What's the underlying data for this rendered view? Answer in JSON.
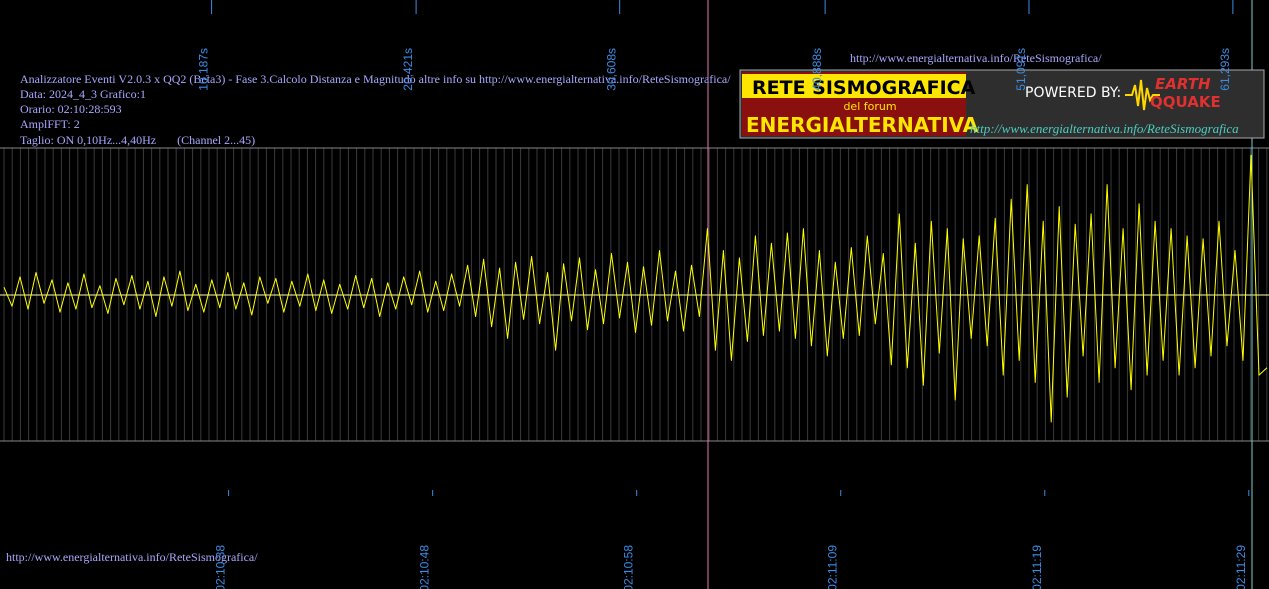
{
  "chart_data": {
    "type": "line",
    "info_lines": [
      "Analizzatore Eventi V2.0.3 x QQ2 (Beta3) - Fase 3.Calcolo Distanza e Magnitudo altre info su http://www.energialternativa.info/ReteSismografica/",
      "Data: 2024_4_3 Grafico:1",
      "Orario: 02:10:28:593",
      "AmplFFT: 2",
      "Taglio: ON 0,10Hz...4,40Hz       (Channel 2...45)"
    ],
    "url_top": "http://www.energialternativa.info/ReteSismografica/",
    "url_bottom": "http://www.energialternativa.info/ReteSismografica/",
    "logo": {
      "title": "RETE SISMOGRAFICA",
      "subtitle": "del forum",
      "name": "ENERGIALTERNATIVA",
      "powered": "POWERED BY:",
      "brand_top": "EARTH",
      "brand_bottom": "QQUAKE",
      "url": "http://www.energialternativa.info/ReteSismografica"
    },
    "color": "#ffff00",
    "xlim": [
      -0.2,
      63.3
    ],
    "ylim": [
      -1,
      1
    ],
    "xticks": [
      {
        "value": 10.187,
        "label": "10,187s"
      },
      {
        "value": 20.421,
        "label": "20,421s"
      },
      {
        "value": 30.608,
        "label": "30,608s"
      },
      {
        "value": 40.888,
        "label": "40,888s"
      },
      {
        "value": 51.091,
        "label": "51,091s"
      },
      {
        "value": 61.293,
        "label": "61,293s"
      }
    ],
    "time_ticks": [
      {
        "value": 11.04,
        "label": "02:10:38"
      },
      {
        "value": 21.25,
        "label": "02:10:48"
      },
      {
        "value": 31.46,
        "label": "02:10:58"
      },
      {
        "value": 41.67,
        "label": "02:11:09"
      },
      {
        "value": 51.88,
        "label": "02:11:19"
      },
      {
        "value": 62.09,
        "label": "02:11:29"
      }
    ],
    "x": [
      0,
      0.4,
      0.8,
      1.2,
      1.6,
      2,
      2.4,
      2.8,
      3.2,
      3.6,
      4,
      4.4,
      4.8,
      5.2,
      5.6,
      6,
      6.4,
      6.8,
      7.2,
      7.6,
      8,
      8.4,
      8.8,
      9.2,
      9.6,
      10,
      10.4,
      10.8,
      11.2,
      11.6,
      12,
      12.4,
      12.8,
      13.2,
      13.6,
      14,
      14.4,
      14.8,
      15.2,
      15.6,
      16,
      16.4,
      16.8,
      17.2,
      17.6,
      18,
      18.4,
      18.8,
      19.2,
      19.6,
      20,
      20.4,
      20.8,
      21.2,
      21.6,
      22,
      22.4,
      22.8,
      23.2,
      23.6,
      24,
      24.4,
      24.8,
      25.2,
      25.6,
      26,
      26.4,
      26.8,
      27.2,
      27.6,
      28,
      28.4,
      28.8,
      29.2,
      29.6,
      30,
      30.4,
      30.8,
      31.2,
      31.6,
      32,
      32.4,
      32.8,
      33.2,
      33.6,
      34,
      34.4,
      34.8,
      35.2,
      35.6,
      36,
      36.4,
      36.8,
      37.2,
      37.6,
      38,
      38.4,
      38.8,
      39.2,
      39.6,
      40,
      40.4,
      40.8,
      41.2,
      41.6,
      42,
      42.4,
      42.8,
      43.2,
      43.6,
      44,
      44.4,
      44.8,
      45.2,
      45.6,
      46,
      46.4,
      46.8,
      47.2,
      47.6,
      48,
      48.4,
      48.8,
      49.2,
      49.6,
      50,
      50.4,
      50.8,
      51.2,
      51.6,
      52,
      52.4,
      52.8,
      53.2,
      53.6,
      54,
      54.4,
      54.8,
      55.2,
      55.6,
      56,
      56.4,
      56.8,
      57.2,
      57.6,
      58,
      58.4,
      58.8,
      59.2,
      59.6,
      60,
      60.4,
      60.8,
      61.2,
      61.6,
      62,
      62.4,
      62.8,
      63.2
    ],
    "values": [
      0.05,
      -0.08,
      0.12,
      -0.1,
      0.15,
      -0.06,
      0.1,
      -0.12,
      0.08,
      -0.1,
      0.14,
      -0.09,
      0.06,
      -0.13,
      0.11,
      -0.07,
      0.13,
      -0.1,
      0.09,
      -0.15,
      0.12,
      -0.08,
      0.16,
      -0.11,
      0.07,
      -0.12,
      0.1,
      -0.09,
      0.15,
      -0.1,
      0.08,
      -0.14,
      0.12,
      -0.06,
      0.11,
      -0.12,
      0.09,
      -0.08,
      0.14,
      -0.11,
      0.1,
      -0.13,
      0.07,
      -0.1,
      0.13,
      -0.09,
      0.11,
      -0.15,
      0.08,
      -0.1,
      0.12,
      -0.07,
      0.16,
      -0.12,
      0.09,
      -0.11,
      0.14,
      -0.08,
      0.2,
      -0.15,
      0.24,
      -0.22,
      0.18,
      -0.3,
      0.22,
      -0.17,
      0.26,
      -0.2,
      0.15,
      -0.38,
      0.21,
      -0.18,
      0.25,
      -0.24,
      0.17,
      -0.2,
      0.28,
      -0.16,
      0.22,
      -0.26,
      0.19,
      -0.21,
      0.3,
      -0.18,
      0.16,
      -0.25,
      0.2,
      -0.15,
      0.45,
      -0.38,
      0.3,
      -0.45,
      0.25,
      -0.32,
      0.4,
      -0.28,
      0.35,
      -0.25,
      0.42,
      -0.3,
      0.45,
      -0.35,
      0.3,
      -0.42,
      0.22,
      -0.3,
      0.32,
      -0.28,
      0.4,
      -0.2,
      0.28,
      -0.48,
      0.55,
      -0.5,
      0.35,
      -0.62,
      0.5,
      -0.4,
      0.45,
      -0.72,
      0.38,
      -0.3,
      0.4,
      -0.35,
      0.52,
      -0.55,
      0.65,
      -0.45,
      0.75,
      -0.6,
      0.5,
      -0.87,
      0.6,
      -0.7,
      0.48,
      -0.42,
      0.55,
      -0.6,
      0.75,
      -0.5,
      0.45,
      -0.65,
      0.62,
      -0.55,
      0.5,
      -0.45,
      0.45,
      -0.55,
      0.4,
      -0.5,
      0.38,
      -0.42,
      0.5,
      -0.35,
      0.3,
      -0.45,
      0.95,
      -0.55,
      -0.5
    ]
  }
}
